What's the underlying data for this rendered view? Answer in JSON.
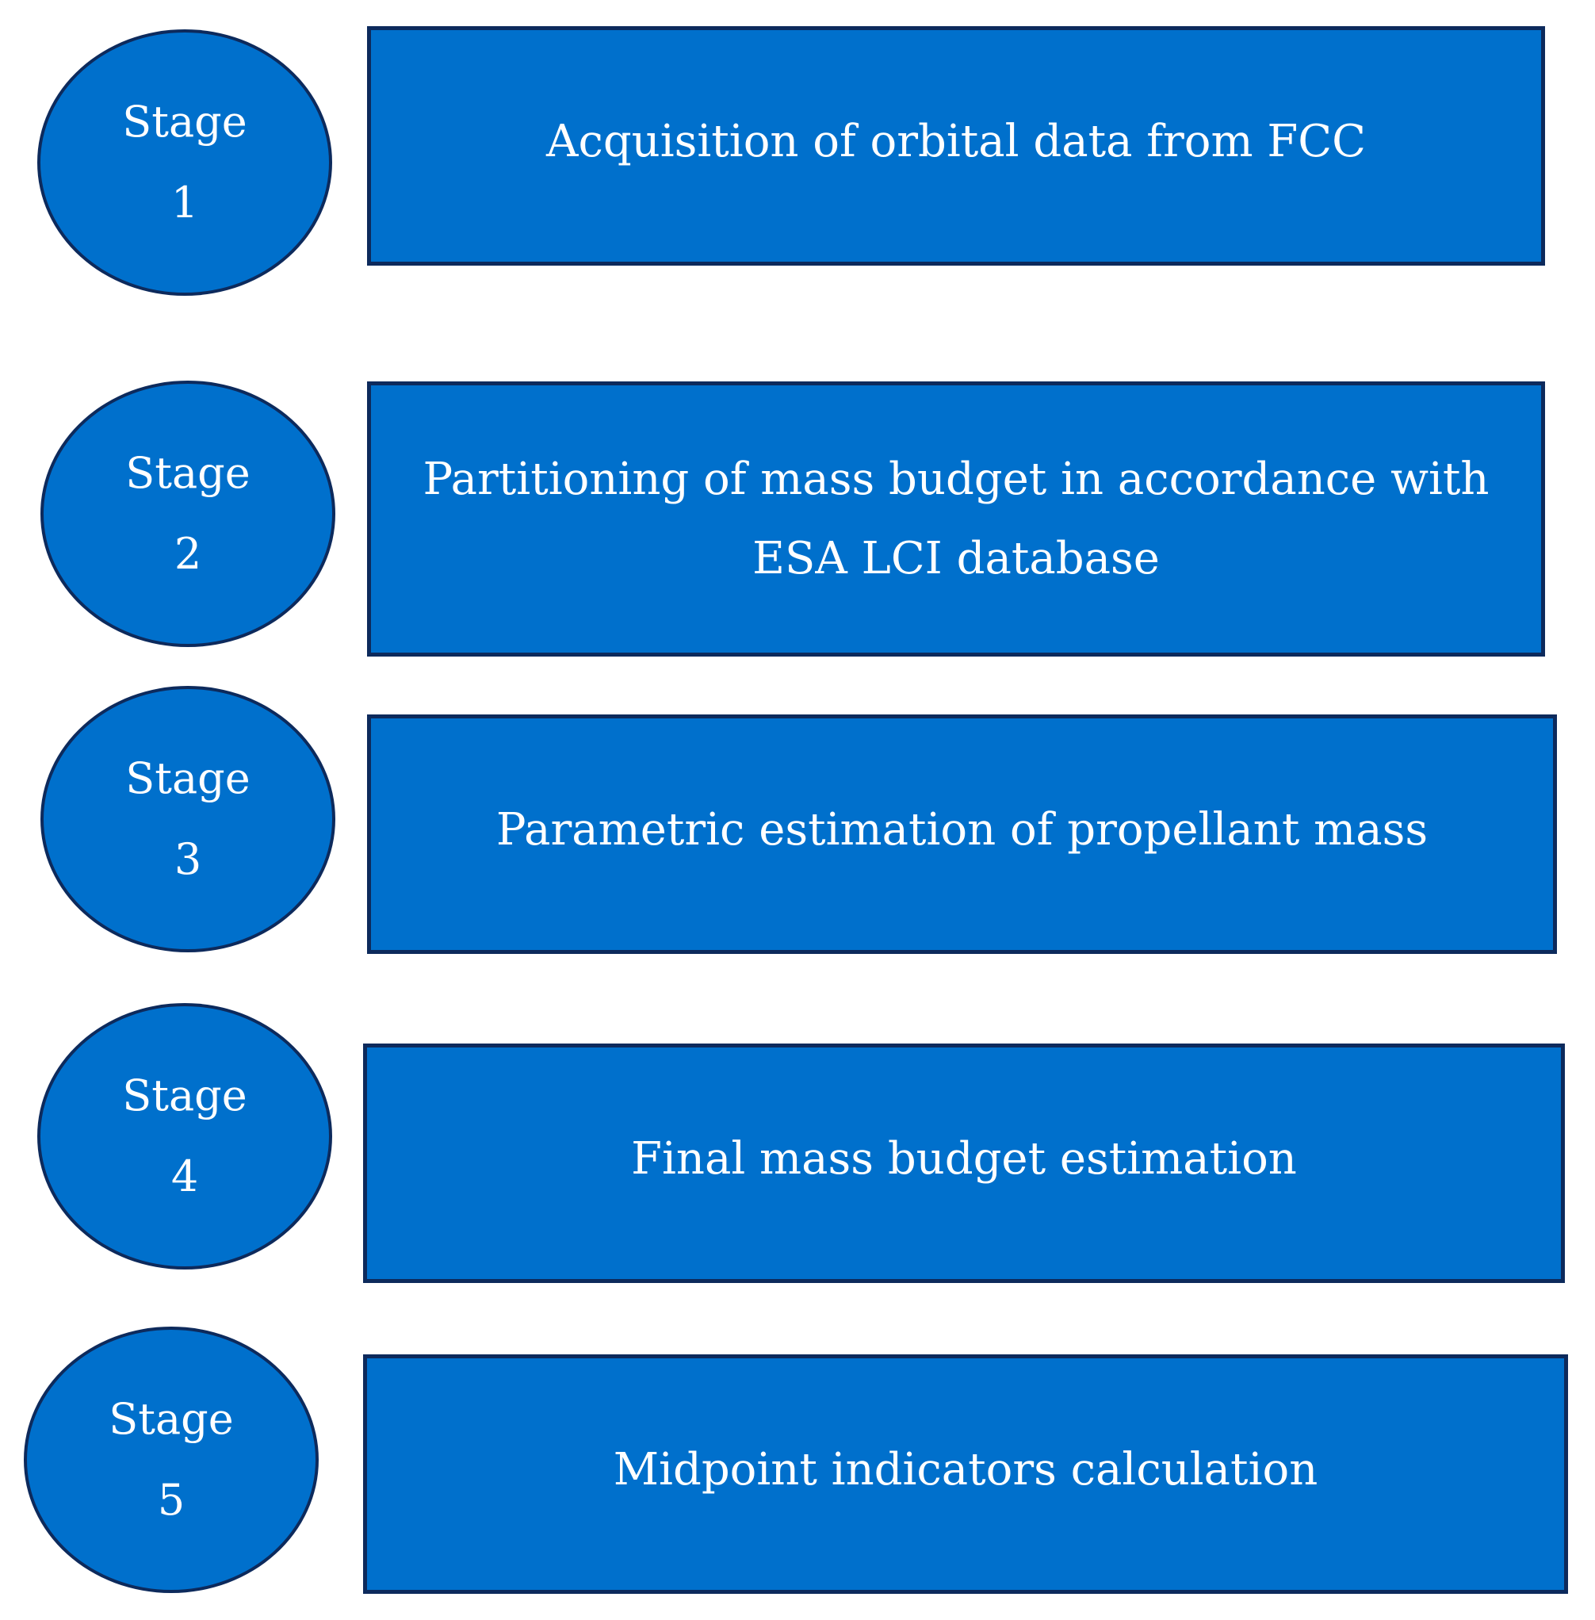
{
  "stages": [
    {
      "label": "Stage",
      "number": "1",
      "description": "Acquisition of orbital data from FCC"
    },
    {
      "label": "Stage",
      "number": "2",
      "description": "Partitioning of mass budget in accordance with ESA LCI database"
    },
    {
      "label": "Stage",
      "number": "3",
      "description": "Parametric estimation of propellant mass"
    },
    {
      "label": "Stage",
      "number": "4",
      "description": "Final mass budget estimation"
    },
    {
      "label": "Stage",
      "number": "5",
      "description": "Midpoint indicators calculation"
    }
  ],
  "colors": {
    "fill": "#0070CC",
    "border": "#0D2A5C",
    "text": "#FFFFFF",
    "background": "#FFFFFF"
  }
}
